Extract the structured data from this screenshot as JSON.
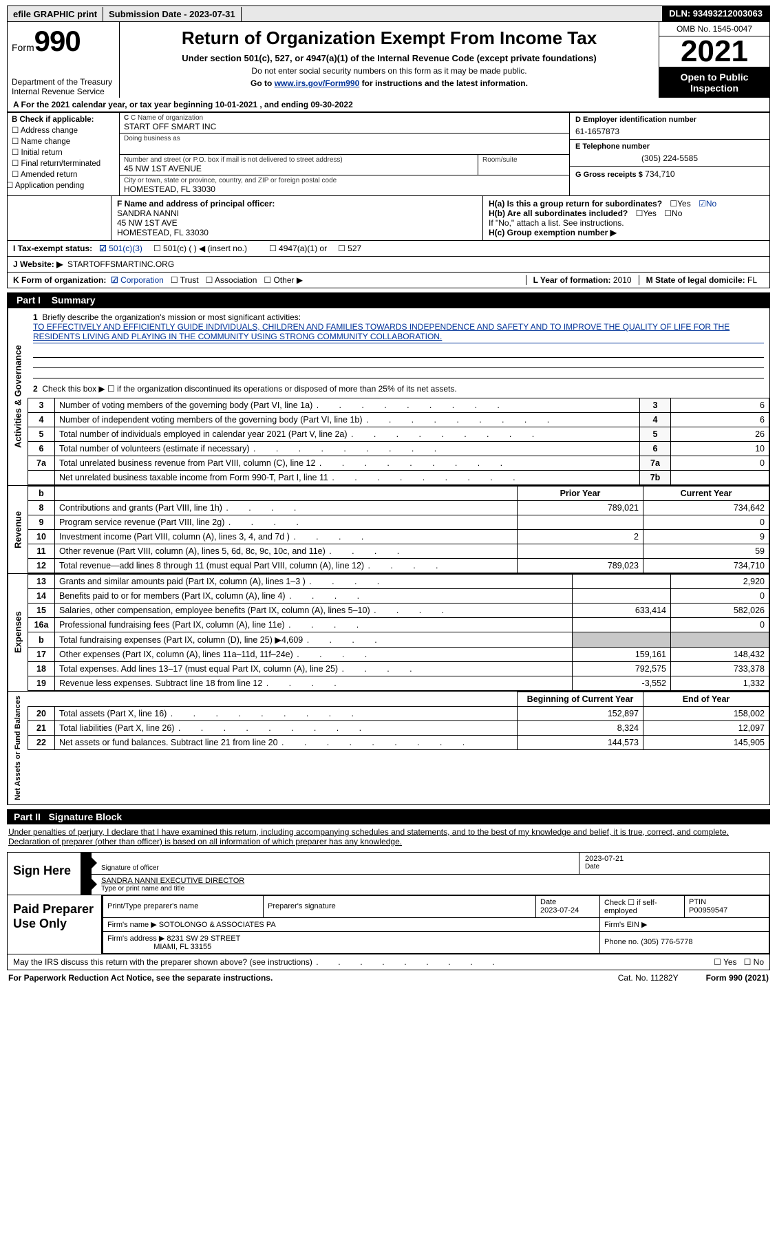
{
  "meta": {
    "efile_label": "efile GRAPHIC print",
    "submission_label": "Submission Date - 2023-07-31",
    "dln_label": "DLN: 93493212003063",
    "form_prefix": "Form",
    "form_number": "990",
    "title": "Return of Organization Exempt From Income Tax",
    "subtitle1": "Under section 501(c), 527, or 4947(a)(1) of the Internal Revenue Code (except private foundations)",
    "subtitle2": "Do not enter social security numbers on this form as it may be made public.",
    "subtitle3_prefix": "Go to ",
    "subtitle3_link": "www.irs.gov/Form990",
    "subtitle3_suffix": " for instructions and the latest information.",
    "omb": "OMB No. 1545-0047",
    "year": "2021",
    "open_inspection": "Open to Public Inspection",
    "dept": "Department of the Treasury",
    "irs": "Internal Revenue Service",
    "cal_year": "A For the 2021 calendar year, or tax year beginning 10-01-2021    , and ending 09-30-2022"
  },
  "section_b": {
    "label": "B Check if applicable:",
    "items": [
      "Address change",
      "Name change",
      "Initial return",
      "Final return/terminated",
      "Amended return",
      "Application pending"
    ]
  },
  "section_c": {
    "name_label": "C Name of organization",
    "name": "START OFF SMART INC",
    "dba_label": "Doing business as",
    "street_label": "Number and street (or P.O. box if mail is not delivered to street address)",
    "street": "45 NW 1ST AVENUE",
    "room_label": "Room/suite",
    "city_label": "City or town, state or province, country, and ZIP or foreign postal code",
    "city": "HOMESTEAD, FL  33030"
  },
  "section_d": {
    "label": "D Employer identification number",
    "value": "61-1657873"
  },
  "section_e": {
    "label": "E Telephone number",
    "value": "(305) 224-5585"
  },
  "section_g": {
    "label": "G Gross receipts $",
    "value": "734,710"
  },
  "section_f": {
    "label": "F  Name and address of principal officer:",
    "name": "SANDRA NANNI",
    "addr1": "45 NW 1ST AVE",
    "addr2": "HOMESTEAD, FL  33030"
  },
  "section_h": {
    "ha": "H(a)  Is this a group return for subordinates?",
    "ha_yes": "Yes",
    "ha_no": "No",
    "hb": "H(b)  Are all subordinates included?",
    "hb_note": "If \"No,\" attach a list. See instructions.",
    "hc": "H(c)  Group exemption number ▶"
  },
  "section_i": {
    "label": "I   Tax-exempt status:",
    "opt1": "501(c)(3)",
    "opt2": "501(c) (  ) ◀ (insert no.)",
    "opt3": "4947(a)(1) or",
    "opt4": "527"
  },
  "section_j": {
    "label": "J   Website: ▶",
    "value": "STARTOFFSMARTINC.ORG"
  },
  "section_k": {
    "label": "K Form of organization:",
    "opts": [
      "Corporation",
      "Trust",
      "Association",
      "Other ▶"
    ]
  },
  "section_l": {
    "label": "L Year of formation:",
    "value": "2010"
  },
  "section_m": {
    "label": "M State of legal domicile:",
    "value": "FL"
  },
  "part1": {
    "header_num": "Part I",
    "header_title": "Summary",
    "side_label_1": "Activities & Governance",
    "side_label_2": "Revenue",
    "side_label_3": "Expenses",
    "side_label_4": "Net Assets or Fund Balances",
    "line1_label": "Briefly describe the organization's mission or most significant activities:",
    "line1_text": "TO EFFECTIVELY AND EFFICIENTLY GUIDE INDIVIDUALS, CHILDREN AND FAMILIES TOWARDS INDEPENDENCE AND SAFETY AND TO IMPROVE THE QUALITY OF LIFE FOR THE RESIDENTS LIVING AND PLAYING IN THE COMMUNITY USING STRONG COMMUNITY COLLABORATION.",
    "line2": "Check this box ▶ ☐  if the organization discontinued its operations or disposed of more than 25% of its net assets.",
    "rows_ag": [
      {
        "n": "3",
        "desc": "Number of voting members of the governing body (Part VI, line 1a)",
        "box": "3",
        "val": "6"
      },
      {
        "n": "4",
        "desc": "Number of independent voting members of the governing body (Part VI, line 1b)",
        "box": "4",
        "val": "6"
      },
      {
        "n": "5",
        "desc": "Total number of individuals employed in calendar year 2021 (Part V, line 2a)",
        "box": "5",
        "val": "26"
      },
      {
        "n": "6",
        "desc": "Total number of volunteers (estimate if necessary)",
        "box": "6",
        "val": "10"
      },
      {
        "n": "7a",
        "desc": "Total unrelated business revenue from Part VIII, column (C), line 12",
        "box": "7a",
        "val": "0"
      },
      {
        "n": "",
        "desc": "Net unrelated business taxable income from Form 990-T, Part I, line 11",
        "box": "7b",
        "val": ""
      }
    ],
    "col_prior": "Prior Year",
    "col_current": "Current Year",
    "rows_rev": [
      {
        "n": "8",
        "desc": "Contributions and grants (Part VIII, line 1h)",
        "py": "789,021",
        "cy": "734,642"
      },
      {
        "n": "9",
        "desc": "Program service revenue (Part VIII, line 2g)",
        "py": "",
        "cy": "0"
      },
      {
        "n": "10",
        "desc": "Investment income (Part VIII, column (A), lines 3, 4, and 7d )",
        "py": "2",
        "cy": "9"
      },
      {
        "n": "11",
        "desc": "Other revenue (Part VIII, column (A), lines 5, 6d, 8c, 9c, 10c, and 11e)",
        "py": "",
        "cy": "59"
      },
      {
        "n": "12",
        "desc": "Total revenue—add lines 8 through 11 (must equal Part VIII, column (A), line 12)",
        "py": "789,023",
        "cy": "734,710"
      }
    ],
    "rows_exp": [
      {
        "n": "13",
        "desc": "Grants and similar amounts paid (Part IX, column (A), lines 1–3 )",
        "py": "",
        "cy": "2,920"
      },
      {
        "n": "14",
        "desc": "Benefits paid to or for members (Part IX, column (A), line 4)",
        "py": "",
        "cy": "0"
      },
      {
        "n": "15",
        "desc": "Salaries, other compensation, employee benefits (Part IX, column (A), lines 5–10)",
        "py": "633,414",
        "cy": "582,026"
      },
      {
        "n": "16a",
        "desc": "Professional fundraising fees (Part IX, column (A), line 11e)",
        "py": "",
        "cy": "0"
      },
      {
        "n": "b",
        "desc": "Total fundraising expenses (Part IX, column (D), line 25) ▶4,609",
        "py": "GRAY",
        "cy": "GRAY"
      },
      {
        "n": "17",
        "desc": "Other expenses (Part IX, column (A), lines 11a–11d, 11f–24e)",
        "py": "159,161",
        "cy": "148,432"
      },
      {
        "n": "18",
        "desc": "Total expenses. Add lines 13–17 (must equal Part IX, column (A), line 25)",
        "py": "792,575",
        "cy": "733,378"
      },
      {
        "n": "19",
        "desc": "Revenue less expenses. Subtract line 18 from line 12",
        "py": "-3,552",
        "cy": "1,332"
      }
    ],
    "col_begin": "Beginning of Current Year",
    "col_end": "End of Year",
    "rows_net": [
      {
        "n": "20",
        "desc": "Total assets (Part X, line 16)",
        "py": "152,897",
        "cy": "158,002"
      },
      {
        "n": "21",
        "desc": "Total liabilities (Part X, line 26)",
        "py": "8,324",
        "cy": "12,097"
      },
      {
        "n": "22",
        "desc": "Net assets or fund balances. Subtract line 21 from line 20",
        "py": "144,573",
        "cy": "145,905"
      }
    ]
  },
  "part2": {
    "header_num": "Part II",
    "header_title": "Signature Block",
    "intro": "Under penalties of perjury, I declare that I have examined this return, including accompanying schedules and statements, and to the best of my knowledge and belief, it is true, correct, and complete. Declaration of preparer (other than officer) is based on all information of which preparer has any knowledge.",
    "sign_here": "Sign Here",
    "sig_of_officer": "Signature of officer",
    "sig_date": "2023-07-21",
    "date_label": "Date",
    "officer_name": "SANDRA NANNI  EXECUTIVE DIRECTOR",
    "type_name_label": "Type or print name and title",
    "paid_prep": "Paid Preparer Use Only",
    "prep_name_label": "Print/Type preparer's name",
    "prep_sig_label": "Preparer's signature",
    "prep_date_label": "Date",
    "prep_date": "2023-07-24",
    "check_self": "Check ☐ if self-employed",
    "ptin_label": "PTIN",
    "ptin": "P00959547",
    "firm_name_label": "Firm's name     ▶",
    "firm_name": "SOTOLONGO & ASSOCIATES PA",
    "firm_ein_label": "Firm's EIN ▶",
    "firm_addr_label": "Firm's address ▶",
    "firm_addr1": "8231 SW 29 STREET",
    "firm_addr2": "MIAMI, FL  33155",
    "phone_label": "Phone no.",
    "phone": "(305) 776-5778",
    "may_irs": "May the IRS discuss this return with the preparer shown above? (see instructions)",
    "yes": "Yes",
    "no": "No"
  },
  "footer": {
    "paperwork": "For Paperwork Reduction Act Notice, see the separate instructions.",
    "cat": "Cat. No. 11282Y",
    "formref": "Form 990 (2021)"
  },
  "colors": {
    "link_blue": "#003399",
    "header_black": "#000000",
    "gray_bg": "#e8e8e8",
    "gray_cell": "#c8c8c8"
  }
}
